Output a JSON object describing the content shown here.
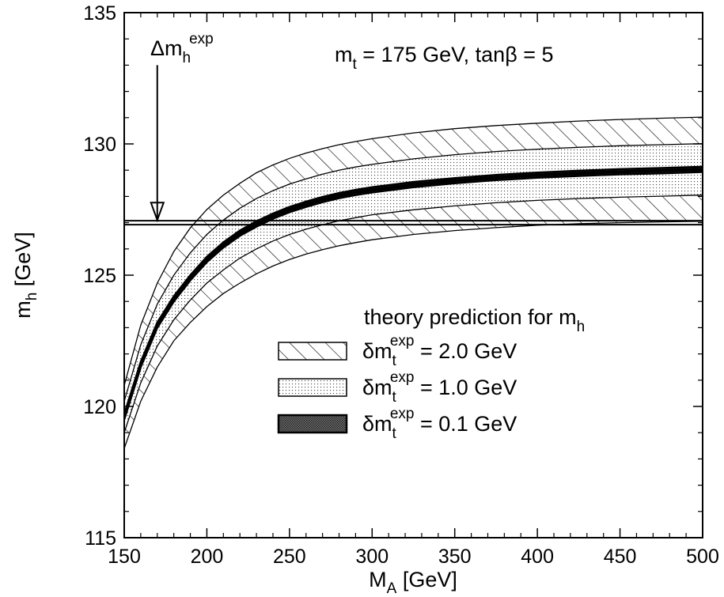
{
  "chart_data": {
    "type": "area",
    "title": "",
    "xlabel": {
      "main": "M",
      "sub": "A",
      "rest": " [GeV]"
    },
    "ylabel": {
      "main": "m",
      "sub": "h",
      "rest": " [GeV]"
    },
    "xlim": [
      150,
      500
    ],
    "ylim": [
      115,
      135
    ],
    "xticks": [
      150,
      200,
      250,
      300,
      350,
      400,
      450,
      500
    ],
    "yticks": [
      115,
      120,
      125,
      130,
      135
    ],
    "grid": false,
    "legend_position": "bottom-right",
    "legend_title": {
      "main": "theory prediction for m",
      "sub": "h"
    },
    "annotation_params": {
      "parts": [
        {
          "t": "m"
        },
        {
          "t": "t",
          "sub": true
        },
        {
          "t": " = 175 GeV, tan"
        },
        {
          "t": "β"
        },
        {
          "t": " = 5"
        }
      ]
    },
    "annotation_arrow": {
      "main": "Δm",
      "sub": "h",
      "sup": "exp",
      "x": 170,
      "y_top": 133.0,
      "y_tip": 127.1
    },
    "experimental_line": {
      "y": 127.0
    },
    "central_curve": {
      "x": [
        150,
        160,
        170,
        180,
        190,
        200,
        210,
        220,
        230,
        240,
        250,
        260,
        270,
        280,
        290,
        300,
        325,
        350,
        375,
        400,
        425,
        450,
        475,
        500
      ],
      "y": [
        119.6,
        121.6,
        123.1,
        124.1,
        124.9,
        125.6,
        126.15,
        126.6,
        126.95,
        127.25,
        127.5,
        127.7,
        127.88,
        128.03,
        128.15,
        128.25,
        128.45,
        128.6,
        128.72,
        128.81,
        128.88,
        128.94,
        128.98,
        129.03
      ]
    },
    "series": [
      {
        "name": {
          "main": "δm",
          "sub": "t",
          "sup": "exp",
          "rest": " = 2.0 GeV"
        },
        "x": [
          150,
          160,
          170,
          180,
          190,
          200,
          210,
          220,
          230,
          240,
          250,
          260,
          270,
          280,
          290,
          300,
          325,
          350,
          375,
          400,
          425,
          450,
          475,
          500
        ],
        "upper": [
          120.8,
          123.1,
          124.7,
          125.9,
          126.8,
          127.5,
          128.05,
          128.5,
          128.9,
          129.2,
          129.45,
          129.65,
          129.82,
          129.97,
          130.09,
          130.2,
          130.42,
          130.58,
          130.7,
          130.79,
          130.87,
          130.93,
          130.98,
          131.02
        ],
        "lower": [
          118.4,
          120.2,
          121.5,
          122.5,
          123.2,
          123.8,
          124.3,
          124.7,
          125.05,
          125.35,
          125.6,
          125.8,
          125.97,
          126.12,
          126.24,
          126.35,
          126.55,
          126.7,
          126.81,
          126.9,
          126.96,
          127.0,
          127.03,
          127.05
        ]
      },
      {
        "name": {
          "main": "δm",
          "sub": "t",
          "sup": "exp",
          "rest": " = 1.0 GeV"
        },
        "x": [
          150,
          160,
          170,
          180,
          190,
          200,
          210,
          220,
          230,
          240,
          250,
          260,
          270,
          280,
          290,
          300,
          325,
          350,
          375,
          400,
          425,
          450,
          475,
          500
        ],
        "upper": [
          120.2,
          122.35,
          123.9,
          125.0,
          125.85,
          126.55,
          127.1,
          127.55,
          127.92,
          128.22,
          128.47,
          128.67,
          128.85,
          129.0,
          129.12,
          129.22,
          129.43,
          129.59,
          129.71,
          129.8,
          129.87,
          129.93,
          129.97,
          130.01
        ],
        "lower": [
          119.0,
          120.9,
          122.3,
          123.3,
          124.05,
          124.7,
          125.2,
          125.65,
          126.0,
          126.3,
          126.55,
          126.75,
          126.92,
          127.07,
          127.19,
          127.3,
          127.49,
          127.64,
          127.76,
          127.85,
          127.92,
          127.97,
          128.01,
          128.05
        ]
      },
      {
        "name": {
          "main": "δm",
          "sub": "t",
          "sup": "exp",
          "rest": " = 0.1 GeV"
        },
        "x": [
          150,
          160,
          170,
          180,
          190,
          200,
          210,
          220,
          230,
          240,
          250,
          260,
          270,
          280,
          290,
          300,
          325,
          350,
          375,
          400,
          425,
          450,
          475,
          500
        ],
        "upper": [
          119.7,
          121.7,
          123.2,
          124.2,
          125.0,
          125.7,
          126.25,
          126.7,
          127.05,
          127.35,
          127.6,
          127.8,
          127.98,
          128.13,
          128.25,
          128.35,
          128.55,
          128.7,
          128.82,
          128.91,
          128.98,
          129.04,
          129.08,
          129.13
        ],
        "lower": [
          119.5,
          121.5,
          123.0,
          124.0,
          124.8,
          125.5,
          126.05,
          126.5,
          126.85,
          127.15,
          127.4,
          127.6,
          127.78,
          127.93,
          128.05,
          128.15,
          128.35,
          128.5,
          128.62,
          128.71,
          128.78,
          128.84,
          128.88,
          128.93
        ]
      }
    ]
  }
}
